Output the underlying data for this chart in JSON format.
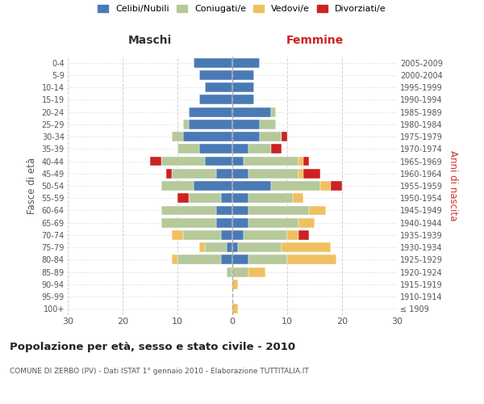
{
  "age_groups": [
    "100+",
    "95-99",
    "90-94",
    "85-89",
    "80-84",
    "75-79",
    "70-74",
    "65-69",
    "60-64",
    "55-59",
    "50-54",
    "45-49",
    "40-44",
    "35-39",
    "30-34",
    "25-29",
    "20-24",
    "15-19",
    "10-14",
    "5-9",
    "0-4"
  ],
  "birth_years": [
    "≤ 1909",
    "1910-1914",
    "1915-1919",
    "1920-1924",
    "1925-1929",
    "1930-1934",
    "1935-1939",
    "1940-1944",
    "1945-1949",
    "1950-1954",
    "1955-1959",
    "1960-1964",
    "1965-1969",
    "1970-1974",
    "1975-1979",
    "1980-1984",
    "1985-1989",
    "1990-1994",
    "1995-1999",
    "2000-2004",
    "2005-2009"
  ],
  "colors": {
    "celibe": "#4a7ab5",
    "coniugato": "#b5c99a",
    "vedovo": "#f0c060",
    "divorziato": "#cc2222"
  },
  "maschi": {
    "celibe": [
      0,
      0,
      0,
      0,
      2,
      1,
      2,
      3,
      3,
      2,
      7,
      3,
      5,
      6,
      9,
      8,
      8,
      6,
      5,
      6,
      7
    ],
    "coniugato": [
      0,
      0,
      0,
      1,
      8,
      4,
      7,
      10,
      10,
      6,
      6,
      8,
      8,
      4,
      2,
      1,
      0,
      0,
      0,
      0,
      0
    ],
    "vedovo": [
      0,
      0,
      0,
      0,
      1,
      1,
      2,
      0,
      0,
      0,
      0,
      0,
      0,
      0,
      0,
      0,
      0,
      0,
      0,
      0,
      0
    ],
    "divorziato": [
      0,
      0,
      0,
      0,
      0,
      0,
      0,
      0,
      0,
      2,
      0,
      1,
      2,
      0,
      0,
      0,
      0,
      0,
      0,
      0,
      0
    ]
  },
  "femmine": {
    "celibe": [
      0,
      0,
      0,
      0,
      3,
      1,
      2,
      3,
      3,
      3,
      7,
      3,
      2,
      3,
      5,
      5,
      7,
      4,
      4,
      4,
      5
    ],
    "coniugato": [
      0,
      0,
      0,
      3,
      7,
      8,
      8,
      9,
      11,
      8,
      9,
      9,
      10,
      4,
      4,
      3,
      1,
      0,
      0,
      0,
      0
    ],
    "vedovo": [
      1,
      0,
      1,
      3,
      9,
      9,
      2,
      3,
      3,
      2,
      2,
      1,
      1,
      0,
      0,
      0,
      0,
      0,
      0,
      0,
      0
    ],
    "divorziato": [
      0,
      0,
      0,
      0,
      0,
      0,
      2,
      0,
      0,
      0,
      2,
      3,
      1,
      2,
      1,
      0,
      0,
      0,
      0,
      0,
      0
    ]
  },
  "xlim": 30,
  "title": "Popolazione per età, sesso e stato civile - 2010",
  "subtitle": "COMUNE DI ZERBO (PV) - Dati ISTAT 1° gennaio 2010 - Elaborazione TUTTITALIA.IT",
  "ylabel_left": "Fasce di età",
  "ylabel_right": "Anni di nascita",
  "xlabel_left": "Maschi",
  "xlabel_right": "Femmine",
  "legend_labels": [
    "Celibi/Nubili",
    "Coniugati/e",
    "Vedovi/e",
    "Divorziati/e"
  ],
  "background_color": "#ffffff",
  "grid_color": "#cccccc"
}
